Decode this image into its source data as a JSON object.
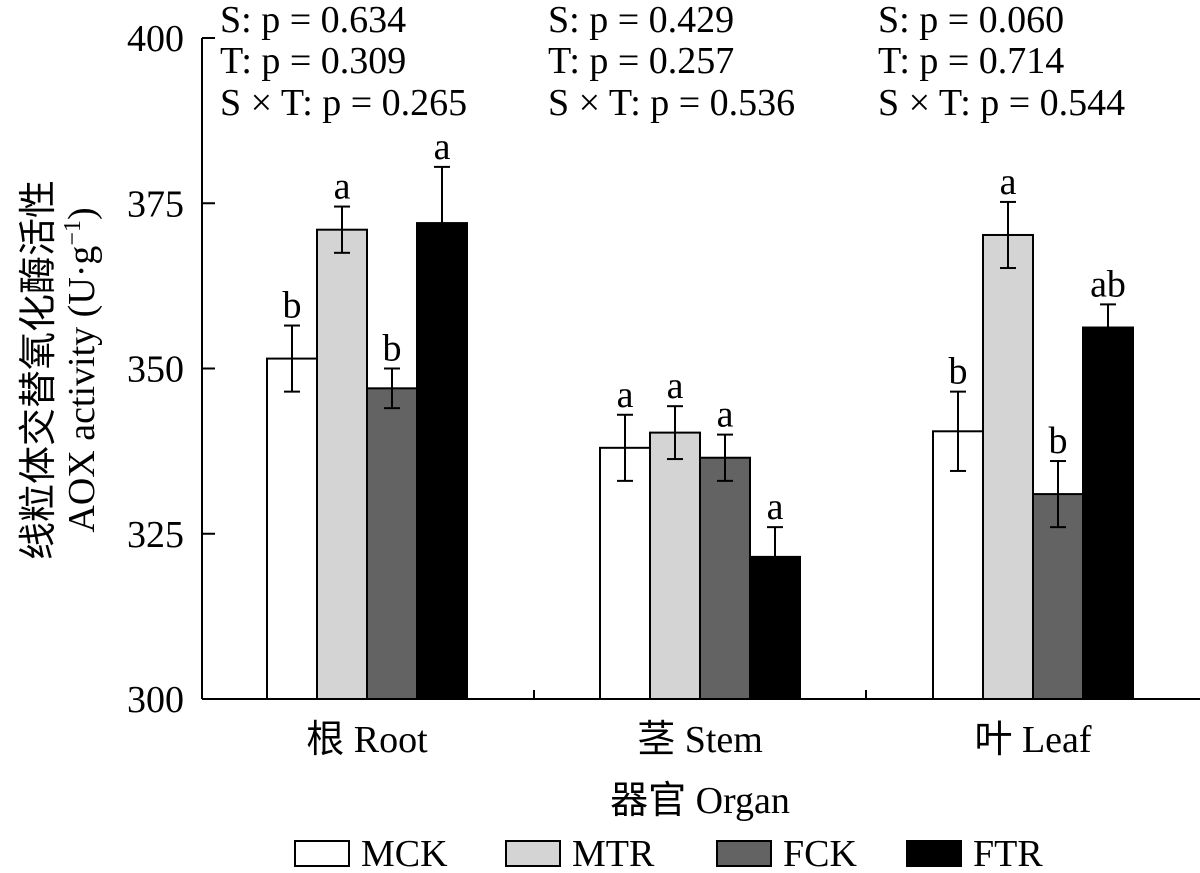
{
  "chart_data": {
    "type": "bar",
    "categories": [
      "根 Root",
      "茎 Stem",
      "叶 Leaf"
    ],
    "series": [
      {
        "name": "MCK",
        "color": "#ffffff",
        "values": [
          351.5,
          338.0,
          340.5
        ],
        "errors": [
          5.0,
          5.0,
          6.0
        ],
        "letters": [
          "b",
          "a",
          "b"
        ]
      },
      {
        "name": "MTR",
        "color": "#d4d4d4",
        "values": [
          371.0,
          340.3,
          370.2
        ],
        "errors": [
          3.5,
          4.0,
          5.0
        ],
        "letters": [
          "a",
          "a",
          "a"
        ]
      },
      {
        "name": "FCK",
        "color": "#636363",
        "values": [
          347.0,
          336.5,
          331.0
        ],
        "errors": [
          3.0,
          3.5,
          5.0
        ],
        "letters": [
          "b",
          "a",
          "b"
        ]
      },
      {
        "name": "FTR",
        "color": "#000000",
        "values": [
          372.0,
          321.5,
          356.2
        ],
        "errors": [
          8.5,
          4.5,
          3.5
        ],
        "letters": [
          "a",
          "a",
          "ab"
        ]
      }
    ],
    "stats": [
      [
        "S: p = 0.634",
        "T: p = 0.309",
        "S × T: p = 0.265"
      ],
      [
        "S: p = 0.429",
        "T: p = 0.257",
        "S × T: p = 0.536"
      ],
      [
        "S: p = 0.060",
        "T: p = 0.714",
        "S × T: p = 0.544"
      ]
    ],
    "ylabel_cn": "线粒体交替氧化酶活性",
    "ylabel_en": "AOX activity (U·g",
    "ylabel_sup": "−1",
    "ylabel_close": ")",
    "xlabel": "器官 Organ",
    "ylim": [
      300,
      400
    ],
    "yticks": [
      300,
      325,
      350,
      375,
      400
    ],
    "legend_position": "bottom",
    "grid": false
  }
}
